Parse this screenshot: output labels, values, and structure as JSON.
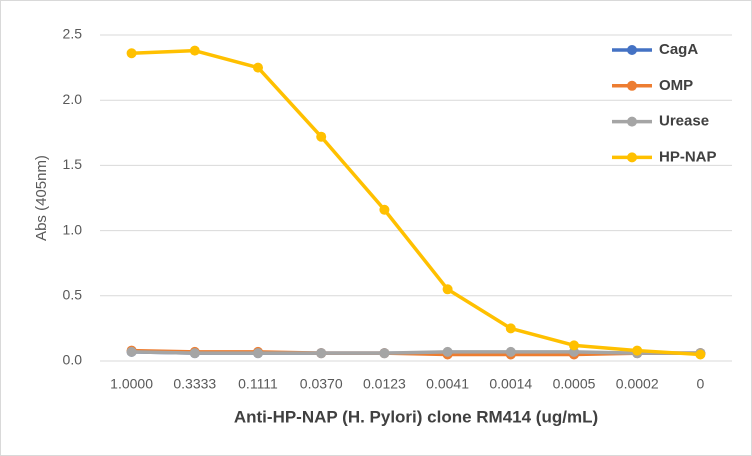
{
  "chart_data": {
    "type": "line",
    "x_label": "Anti-HP-NAP (H. Pylori) clone RM414 (ug/mL)",
    "y_label": "Abs (405nm)",
    "categories": [
      "1.0000",
      "0.3333",
      "0.1111",
      "0.0370",
      "0.0123",
      "0.0041",
      "0.0014",
      "0.0005",
      "0.0002",
      "0"
    ],
    "series": [
      {
        "name": "CagA",
        "color": "#4472c4",
        "values": [
          0.07,
          0.06,
          0.06,
          0.06,
          0.06,
          0.06,
          0.06,
          0.06,
          0.06,
          0.06
        ]
      },
      {
        "name": "OMP",
        "color": "#ed7d31",
        "values": [
          0.08,
          0.07,
          0.07,
          0.06,
          0.06,
          0.05,
          0.05,
          0.05,
          0.06,
          0.06
        ]
      },
      {
        "name": "Urease",
        "color": "#a5a5a5",
        "values": [
          0.07,
          0.06,
          0.06,
          0.06,
          0.06,
          0.07,
          0.07,
          0.07,
          0.06,
          0.06
        ]
      },
      {
        "name": "HP-NAP",
        "color": "#ffc000",
        "values": [
          2.36,
          2.38,
          2.25,
          1.72,
          1.16,
          0.55,
          0.25,
          0.12,
          0.08,
          0.05
        ]
      }
    ],
    "ylim": [
      0,
      2.5
    ],
    "yticks": [
      {
        "value": 0,
        "label": "0.0"
      },
      0.5,
      {
        "value": 1,
        "label": "1.0"
      },
      1.5,
      {
        "value": 2,
        "label": "2.0"
      },
      2.5
    ],
    "grid": true,
    "legend": "top-right"
  }
}
